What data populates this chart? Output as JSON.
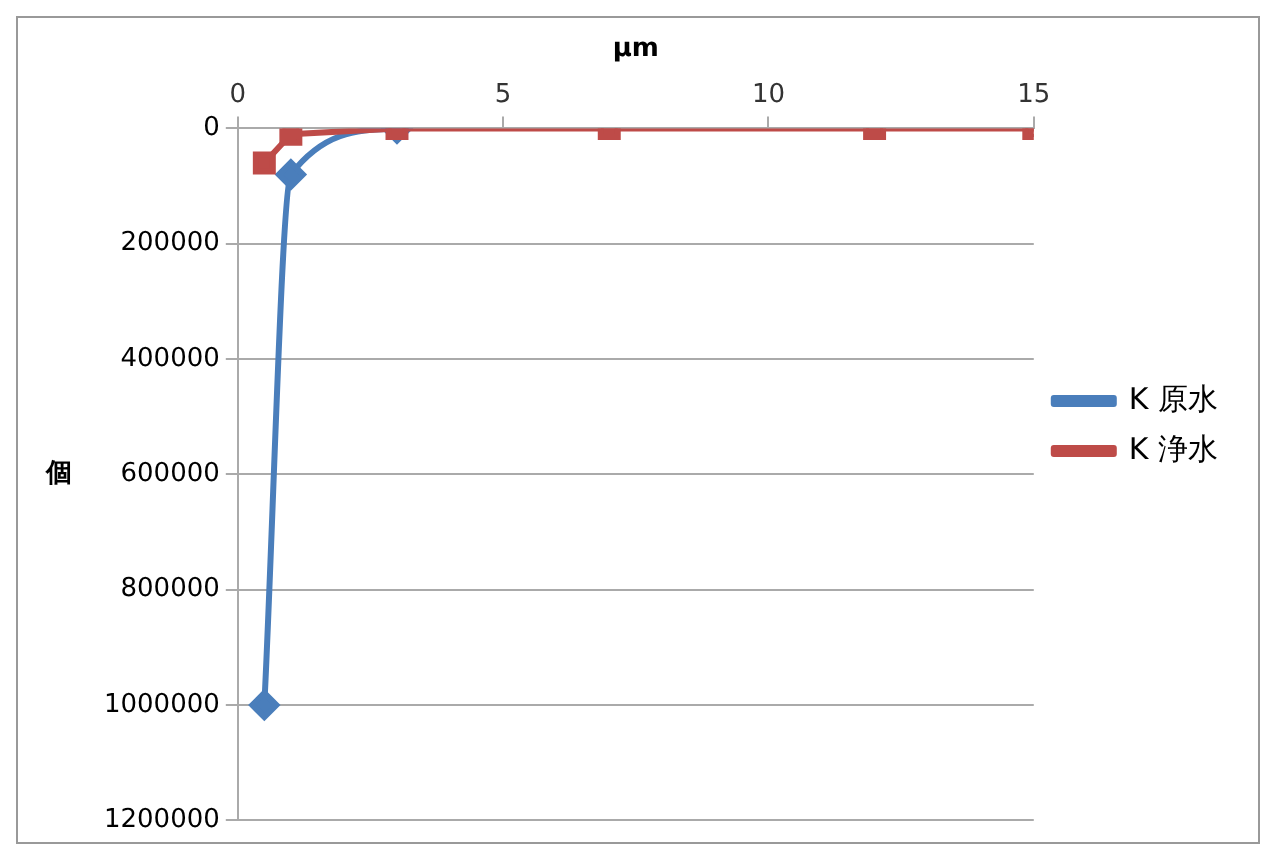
{
  "chart_data": {
    "type": "line",
    "xlabel": "µm",
    "ylabel": "個",
    "xlim": [
      0,
      15
    ],
    "xticks": [
      0,
      5,
      10,
      15
    ],
    "ylim": [
      1200000,
      0
    ],
    "yticks": [
      0,
      200000,
      400000,
      600000,
      800000,
      1000000,
      1200000
    ],
    "grid": "y",
    "legend": "right",
    "series": [
      {
        "name": "K 原水",
        "color": "#4a7ebb",
        "marker": "diamond",
        "x": [
          0.5,
          1,
          3
        ],
        "values": [
          1000000,
          80000,
          0
        ]
      },
      {
        "name": "K 浄水",
        "color": "#be4b48",
        "marker": "square",
        "x": [
          0.5,
          1,
          3,
          7,
          12,
          15
        ],
        "values": [
          60000,
          10000,
          0,
          0,
          0,
          0
        ]
      }
    ]
  }
}
